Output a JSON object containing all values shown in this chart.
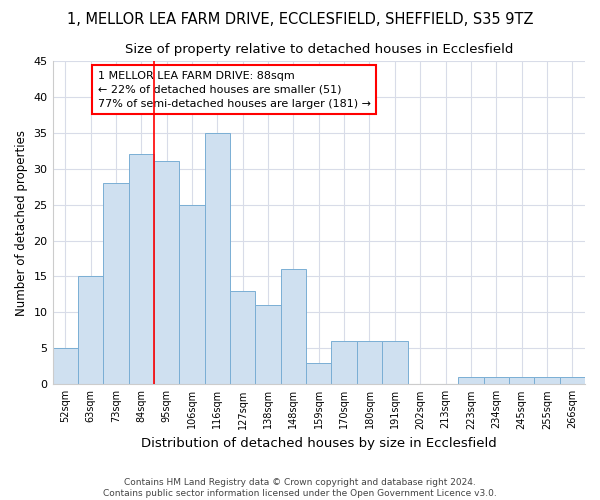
{
  "title1": "1, MELLOR LEA FARM DRIVE, ECCLESFIELD, SHEFFIELD, S35 9TZ",
  "title2": "Size of property relative to detached houses in Ecclesfield",
  "xlabel": "Distribution of detached houses by size in Ecclesfield",
  "ylabel": "Number of detached properties",
  "footer1": "Contains HM Land Registry data © Crown copyright and database right 2024.",
  "footer2": "Contains public sector information licensed under the Open Government Licence v3.0.",
  "categories": [
    "52sqm",
    "63sqm",
    "73sqm",
    "84sqm",
    "95sqm",
    "106sqm",
    "116sqm",
    "127sqm",
    "138sqm",
    "148sqm",
    "159sqm",
    "170sqm",
    "180sqm",
    "191sqm",
    "202sqm",
    "213sqm",
    "223sqm",
    "234sqm",
    "245sqm",
    "255sqm",
    "266sqm"
  ],
  "values": [
    5,
    15,
    28,
    32,
    31,
    25,
    35,
    13,
    11,
    16,
    3,
    6,
    6,
    6,
    0,
    0,
    1,
    1,
    1,
    1,
    1
  ],
  "bar_color": "#cfe0f0",
  "bar_edge_color": "#7aaed4",
  "red_line_index": 3,
  "annotation_line1": "1 MELLOR LEA FARM DRIVE: 88sqm",
  "annotation_line2": "← 22% of detached houses are smaller (51)",
  "annotation_line3": "77% of semi-detached houses are larger (181) →",
  "ylim": [
    0,
    45
  ],
  "yticks": [
    0,
    5,
    10,
    15,
    20,
    25,
    30,
    35,
    40,
    45
  ],
  "bg_color": "#ffffff",
  "plot_bg_color": "#ffffff",
  "grid_color": "#d8dce8",
  "title1_fontsize": 10.5,
  "title2_fontsize": 9.5,
  "xlabel_fontsize": 9.5,
  "ylabel_fontsize": 8.5
}
